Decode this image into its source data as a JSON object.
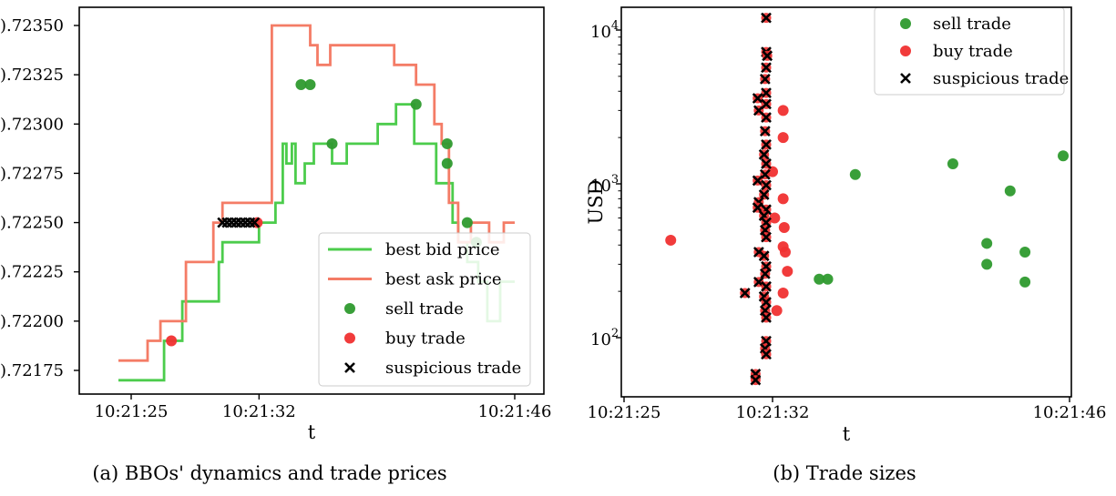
{
  "colors": {
    "bid": "#4ccc4c",
    "ask": "#f47c66",
    "sell": "#2e9a2e",
    "buy": "#f03030",
    "suspicious": "#000000"
  },
  "chart_data": [
    {
      "type": "line",
      "caption": "(a) BBOs' dynamics and trade prices",
      "xlabel": "t",
      "ylabel": "",
      "xlim": [
        23.7,
        48.3
      ],
      "ylim": [
        0.72163,
        0.72362
      ],
      "x_ticks": [
        {
          "v": 25,
          "label": "10:21:25"
        },
        {
          "v": 32,
          "label": "10:21:32"
        },
        {
          "v": 46,
          "label": "10:21:46"
        }
      ],
      "y_ticks": [
        {
          "v": 0.72175,
          "label": ").72175"
        },
        {
          "v": 0.722,
          "label": ").72200"
        },
        {
          "v": 0.72225,
          "label": ").72225"
        },
        {
          "v": 0.7225,
          "label": ").72250"
        },
        {
          "v": 0.72275,
          "label": ").72275"
        },
        {
          "v": 0.723,
          "label": ").72300"
        },
        {
          "v": 0.72325,
          "label": ").72325"
        },
        {
          "v": 0.7235,
          "label": ").72350"
        }
      ],
      "legend": {
        "position": "lower-right",
        "entries": [
          {
            "kind": "line",
            "color": "bid",
            "label": "best bid price"
          },
          {
            "kind": "line",
            "color": "ask",
            "label": "best ask price"
          },
          {
            "kind": "dot",
            "color": "sell",
            "label": "sell trade"
          },
          {
            "kind": "dot",
            "color": "buy",
            "label": "buy trade"
          },
          {
            "kind": "x",
            "color": "suspicious",
            "label": "suspicious trade"
          }
        ]
      },
      "series": [
        {
          "name": "best bid price",
          "step": true,
          "x": [
            24.3,
            26.8,
            26.8,
            27.8,
            27.8,
            29.8,
            29.8,
            30.0,
            30.0,
            32.0,
            32.0,
            32.9,
            32.9,
            33.3,
            33.3,
            33.5,
            33.5,
            33.8,
            33.8,
            34.0,
            34.0,
            34.5,
            34.5,
            35.0,
            35.0,
            36.0,
            36.0,
            36.8,
            36.8,
            38.5,
            38.5,
            39.5,
            39.5,
            40.5,
            40.5,
            41.7,
            41.7,
            42.6,
            42.6,
            42.9,
            42.9,
            43.4,
            43.4,
            44.0,
            44.0,
            44.5,
            44.5,
            45.2,
            45.2,
            46.0
          ],
          "y": [
            0.7217,
            0.7217,
            0.7219,
            0.7219,
            0.7221,
            0.7221,
            0.7223,
            0.7223,
            0.7224,
            0.7224,
            0.7225,
            0.7225,
            0.7226,
            0.7226,
            0.7229,
            0.7229,
            0.7228,
            0.7228,
            0.7229,
            0.7229,
            0.7227,
            0.7227,
            0.7228,
            0.7228,
            0.7229,
            0.7229,
            0.7228,
            0.7228,
            0.7229,
            0.7229,
            0.723,
            0.723,
            0.7231,
            0.7231,
            0.7229,
            0.7229,
            0.7227,
            0.7227,
            0.7225,
            0.7225,
            0.7224,
            0.7224,
            0.7223,
            0.7223,
            0.7222,
            0.7222,
            0.722,
            0.722,
            0.7222,
            0.7222
          ]
        },
        {
          "name": "best ask price",
          "step": true,
          "x": [
            24.3,
            25.9,
            25.9,
            26.6,
            26.6,
            28.0,
            28.0,
            29.5,
            29.5,
            30.0,
            30.0,
            32.7,
            32.7,
            34.8,
            34.8,
            35.2,
            35.2,
            35.9,
            35.9,
            39.4,
            39.4,
            40.6,
            40.6,
            41.6,
            41.6,
            42.0,
            42.0,
            42.4,
            42.4,
            42.9,
            42.9,
            43.6,
            43.6,
            44.6,
            44.6,
            45.4,
            45.4,
            46.0
          ],
          "y": [
            0.7218,
            0.7218,
            0.7219,
            0.7219,
            0.722,
            0.722,
            0.7223,
            0.7223,
            0.7225,
            0.7225,
            0.7226,
            0.7226,
            0.7235,
            0.7235,
            0.7234,
            0.7234,
            0.7233,
            0.7233,
            0.7234,
            0.7234,
            0.7233,
            0.7233,
            0.7232,
            0.7232,
            0.723,
            0.723,
            0.7229,
            0.7229,
            0.7226,
            0.7226,
            0.7224,
            0.7224,
            0.7225,
            0.7225,
            0.7224,
            0.7224,
            0.7225,
            0.7225
          ]
        }
      ],
      "trades": [
        {
          "side": "buy",
          "x": 27.2,
          "y": 0.7219
        },
        {
          "side": "buy",
          "x": 31.9,
          "y": 0.7225
        },
        {
          "side": "sell",
          "x": 34.3,
          "y": 0.7232
        },
        {
          "side": "sell",
          "x": 34.8,
          "y": 0.7232
        },
        {
          "side": "sell",
          "x": 36.0,
          "y": 0.7229
        },
        {
          "side": "sell",
          "x": 40.6,
          "y": 0.7231
        },
        {
          "side": "sell",
          "x": 42.3,
          "y": 0.7229
        },
        {
          "side": "sell",
          "x": 42.3,
          "y": 0.7228
        },
        {
          "side": "sell",
          "x": 43.4,
          "y": 0.7225
        },
        {
          "side": "sell",
          "x": 43.9,
          "y": 0.7224
        }
      ],
      "suspicious": [
        {
          "x": 30.0,
          "y": 0.7225
        },
        {
          "x": 30.25,
          "y": 0.7225
        },
        {
          "x": 30.5,
          "y": 0.7225
        },
        {
          "x": 30.75,
          "y": 0.7225
        },
        {
          "x": 31.0,
          "y": 0.7225
        },
        {
          "x": 31.25,
          "y": 0.7225
        },
        {
          "x": 31.5,
          "y": 0.7225
        },
        {
          "x": 31.75,
          "y": 0.7225
        }
      ]
    },
    {
      "type": "scatter",
      "caption": "(b) Trade sizes",
      "xlabel": "t",
      "ylabel": "USD",
      "y_scale": "log",
      "xlim": [
        25,
        46
      ],
      "ylim": [
        40,
        16000
      ],
      "x_ticks": [
        {
          "v": 25,
          "label": "10:21:25"
        },
        {
          "v": 32,
          "label": "10:21:32"
        },
        {
          "v": 46,
          "label": "10:21:46"
        }
      ],
      "y_ticks": [
        {
          "v": 100,
          "base": "10",
          "exp": "2"
        },
        {
          "v": 1000,
          "base": "10",
          "exp": "3"
        },
        {
          "v": 10000,
          "base": "10",
          "exp": "4"
        }
      ],
      "legend": {
        "position": "upper-right",
        "entries": [
          {
            "kind": "dot",
            "color": "sell",
            "label": "sell trade"
          },
          {
            "kind": "dot",
            "color": "buy",
            "label": "buy trade"
          },
          {
            "kind": "x",
            "color": "suspicious",
            "label": "suspicious trade"
          }
        ]
      },
      "sell": [
        {
          "x": 34.2,
          "y": 240
        },
        {
          "x": 34.6,
          "y": 240
        },
        {
          "x": 35.9,
          "y": 1150
        },
        {
          "x": 40.5,
          "y": 1350
        },
        {
          "x": 42.1,
          "y": 410
        },
        {
          "x": 42.1,
          "y": 300
        },
        {
          "x": 43.2,
          "y": 900
        },
        {
          "x": 43.9,
          "y": 360
        },
        {
          "x": 43.9,
          "y": 230
        },
        {
          "x": 45.7,
          "y": 1520
        }
      ],
      "buy": [
        {
          "x": 27.2,
          "y": 430
        },
        {
          "x": 32.5,
          "y": 3000
        },
        {
          "x": 32.5,
          "y": 2000
        },
        {
          "x": 32.5,
          "y": 800
        },
        {
          "x": 32.55,
          "y": 520
        },
        {
          "x": 32.5,
          "y": 390
        },
        {
          "x": 32.6,
          "y": 360
        },
        {
          "x": 32.7,
          "y": 270
        },
        {
          "x": 32.5,
          "y": 195
        },
        {
          "x": 32.2,
          "y": 150
        },
        {
          "x": 32.0,
          "y": 1200
        },
        {
          "x": 32.1,
          "y": 600
        }
      ],
      "suspicious": [
        {
          "x": 31.7,
          "y": 12000
        },
        {
          "x": 31.7,
          "y": 7200
        },
        {
          "x": 31.75,
          "y": 6800
        },
        {
          "x": 31.7,
          "y": 5700
        },
        {
          "x": 31.65,
          "y": 4800
        },
        {
          "x": 31.7,
          "y": 3900
        },
        {
          "x": 31.3,
          "y": 3600
        },
        {
          "x": 31.35,
          "y": 3000
        },
        {
          "x": 31.7,
          "y": 3300
        },
        {
          "x": 31.7,
          "y": 2700
        },
        {
          "x": 31.65,
          "y": 2200
        },
        {
          "x": 31.7,
          "y": 1800
        },
        {
          "x": 31.6,
          "y": 1550
        },
        {
          "x": 31.7,
          "y": 1350
        },
        {
          "x": 31.65,
          "y": 1150
        },
        {
          "x": 31.3,
          "y": 1050
        },
        {
          "x": 31.7,
          "y": 980
        },
        {
          "x": 31.6,
          "y": 850
        },
        {
          "x": 31.35,
          "y": 760
        },
        {
          "x": 31.3,
          "y": 700
        },
        {
          "x": 31.7,
          "y": 680
        },
        {
          "x": 31.6,
          "y": 620
        },
        {
          "x": 31.7,
          "y": 560
        },
        {
          "x": 31.65,
          "y": 500
        },
        {
          "x": 31.7,
          "y": 450
        },
        {
          "x": 31.35,
          "y": 360
        },
        {
          "x": 31.6,
          "y": 340
        },
        {
          "x": 31.7,
          "y": 290
        },
        {
          "x": 31.65,
          "y": 260
        },
        {
          "x": 31.35,
          "y": 230
        },
        {
          "x": 31.7,
          "y": 215
        },
        {
          "x": 30.7,
          "y": 195
        },
        {
          "x": 31.6,
          "y": 185
        },
        {
          "x": 31.7,
          "y": 170
        },
        {
          "x": 31.65,
          "y": 150
        },
        {
          "x": 31.7,
          "y": 135
        },
        {
          "x": 31.7,
          "y": 95
        },
        {
          "x": 31.65,
          "y": 85
        },
        {
          "x": 31.7,
          "y": 78
        },
        {
          "x": 31.2,
          "y": 58
        },
        {
          "x": 31.2,
          "y": 53
        }
      ]
    }
  ]
}
